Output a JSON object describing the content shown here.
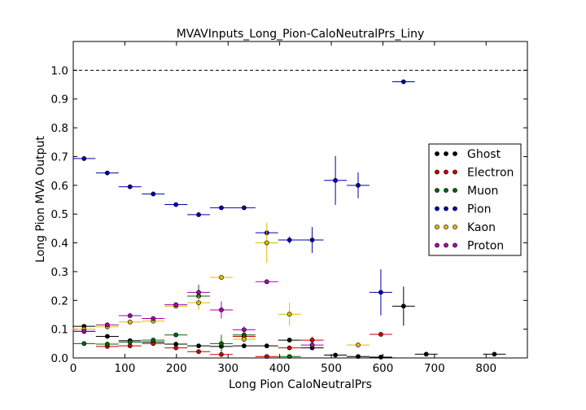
{
  "chart_data": {
    "type": "scatter",
    "title": "MVAVInputs_Long_Pion-CaloNeutralPrs_Liny",
    "xlabel": "Long Pion CaloNeutralPrs",
    "ylabel": "Long Pion MVA Output",
    "xlim": [
      0,
      880
    ],
    "ylim": [
      0,
      1.1
    ],
    "xticks": [
      0,
      100,
      200,
      300,
      400,
      500,
      600,
      700,
      800
    ],
    "yticks": [
      0.0,
      0.1,
      0.2,
      0.3,
      0.4,
      0.5,
      0.6,
      0.7,
      0.8,
      0.9,
      1.0
    ],
    "tick_labels_x": [
      "0",
      "100",
      "200",
      "300",
      "400",
      "500",
      "600",
      "700",
      "800"
    ],
    "tick_labels_y": [
      "0.0",
      "0.1",
      "0.2",
      "0.3",
      "0.4",
      "0.5",
      "0.6",
      "0.7",
      "0.8",
      "0.9",
      "1.0"
    ],
    "reference_line_y": 1.0,
    "legend_position": "right",
    "series": [
      {
        "name": "Ghost",
        "color": "#000000",
        "points": [
          {
            "x": 21,
            "y": 0.11,
            "xerr": 22,
            "yerr": 0.005
          },
          {
            "x": 66,
            "y": 0.075,
            "xerr": 22,
            "yerr": 0.005
          },
          {
            "x": 110,
            "y": 0.06,
            "xerr": 22,
            "yerr": 0.004
          },
          {
            "x": 155,
            "y": 0.055,
            "xerr": 22,
            "yerr": 0.004
          },
          {
            "x": 199,
            "y": 0.048,
            "xerr": 22,
            "yerr": 0.004
          },
          {
            "x": 243,
            "y": 0.042,
            "xerr": 22,
            "yerr": 0.004
          },
          {
            "x": 287,
            "y": 0.04,
            "xerr": 22,
            "yerr": 0.005
          },
          {
            "x": 331,
            "y": 0.042,
            "xerr": 22,
            "yerr": 0.005
          },
          {
            "x": 375,
            "y": 0.042,
            "xerr": 22,
            "yerr": 0.006
          },
          {
            "x": 419,
            "y": 0.062,
            "xerr": 22,
            "yerr": 0.008
          },
          {
            "x": 463,
            "y": 0.035,
            "xerr": 22,
            "yerr": 0.008
          },
          {
            "x": 508,
            "y": 0.01,
            "xerr": 22,
            "yerr": 0.005
          },
          {
            "x": 552,
            "y": 0.005,
            "xerr": 22,
            "yerr": 0.004
          },
          {
            "x": 596,
            "y": 0.003,
            "xerr": 22,
            "yerr": 0.003
          },
          {
            "x": 640,
            "y": 0.18,
            "xerr": 22,
            "yerr": 0.068
          },
          {
            "x": 684,
            "y": 0.013,
            "xerr": 22,
            "yerr": 0.006
          },
          {
            "x": 816,
            "y": 0.013,
            "xerr": 22,
            "yerr": 0.005
          }
        ]
      },
      {
        "name": "Electron",
        "color": "#cc0000",
        "points": [
          {
            "x": 21,
            "y": 0.092,
            "xerr": 22,
            "yerr": 0.006
          },
          {
            "x": 66,
            "y": 0.04,
            "xerr": 22,
            "yerr": 0.004
          },
          {
            "x": 110,
            "y": 0.042,
            "xerr": 22,
            "yerr": 0.004
          },
          {
            "x": 155,
            "y": 0.05,
            "xerr": 22,
            "yerr": 0.004
          },
          {
            "x": 199,
            "y": 0.035,
            "xerr": 22,
            "yerr": 0.004
          },
          {
            "x": 243,
            "y": 0.022,
            "xerr": 22,
            "yerr": 0.004
          },
          {
            "x": 287,
            "y": 0.012,
            "xerr": 22,
            "yerr": 0.005
          },
          {
            "x": 331,
            "y": 0.075,
            "xerr": 22,
            "yerr": 0.012
          },
          {
            "x": 375,
            "y": 0.005,
            "xerr": 22,
            "yerr": 0.004
          },
          {
            "x": 419,
            "y": 0.035,
            "xerr": 22,
            "yerr": 0.006
          },
          {
            "x": 463,
            "y": 0.062,
            "xerr": 22,
            "yerr": 0.012
          },
          {
            "x": 596,
            "y": 0.082,
            "xerr": 22,
            "yerr": 0.008
          }
        ]
      },
      {
        "name": "Muon",
        "color": "#006600",
        "points": [
          {
            "x": 21,
            "y": 0.05,
            "xerr": 22,
            "yerr": 0.004
          },
          {
            "x": 66,
            "y": 0.048,
            "xerr": 22,
            "yerr": 0.004
          },
          {
            "x": 110,
            "y": 0.055,
            "xerr": 22,
            "yerr": 0.004
          },
          {
            "x": 155,
            "y": 0.062,
            "xerr": 22,
            "yerr": 0.004
          },
          {
            "x": 199,
            "y": 0.08,
            "xerr": 22,
            "yerr": 0.006
          },
          {
            "x": 243,
            "y": 0.215,
            "xerr": 22,
            "yerr": 0.04
          },
          {
            "x": 287,
            "y": 0.05,
            "xerr": 22,
            "yerr": 0.03
          },
          {
            "x": 331,
            "y": 0.08,
            "xerr": 22,
            "yerr": 0.01
          },
          {
            "x": 419,
            "y": 0.005,
            "xerr": 22,
            "yerr": 0.004
          }
        ]
      },
      {
        "name": "Pion",
        "color": "#0000aa",
        "points": [
          {
            "x": 21,
            "y": 0.693,
            "xerr": 22,
            "yerr": 0.003
          },
          {
            "x": 66,
            "y": 0.643,
            "xerr": 22,
            "yerr": 0.003
          },
          {
            "x": 110,
            "y": 0.595,
            "xerr": 22,
            "yerr": 0.003
          },
          {
            "x": 155,
            "y": 0.57,
            "xerr": 22,
            "yerr": 0.003
          },
          {
            "x": 199,
            "y": 0.533,
            "xerr": 22,
            "yerr": 0.003
          },
          {
            "x": 243,
            "y": 0.498,
            "xerr": 22,
            "yerr": 0.004
          },
          {
            "x": 287,
            "y": 0.522,
            "xerr": 22,
            "yerr": 0.005
          },
          {
            "x": 331,
            "y": 0.522,
            "xerr": 22,
            "yerr": 0.007
          },
          {
            "x": 375,
            "y": 0.435,
            "xerr": 22,
            "yerr": 0.008
          },
          {
            "x": 419,
            "y": 0.41,
            "xerr": 22,
            "yerr": 0.012
          },
          {
            "x": 463,
            "y": 0.41,
            "xerr": 22,
            "yerr": 0.045
          },
          {
            "x": 508,
            "y": 0.617,
            "xerr": 22,
            "yerr": 0.085
          },
          {
            "x": 552,
            "y": 0.6,
            "xerr": 22,
            "yerr": 0.045
          },
          {
            "x": 596,
            "y": 0.228,
            "xerr": 22,
            "yerr": 0.08
          },
          {
            "x": 640,
            "y": 0.96,
            "xerr": 22,
            "yerr": 0.004
          }
        ]
      },
      {
        "name": "Kaon",
        "color": "#ddbb00",
        "points": [
          {
            "x": 21,
            "y": 0.1,
            "xerr": 22,
            "yerr": 0.005
          },
          {
            "x": 66,
            "y": 0.108,
            "xerr": 22,
            "yerr": 0.005
          },
          {
            "x": 110,
            "y": 0.125,
            "xerr": 22,
            "yerr": 0.005
          },
          {
            "x": 155,
            "y": 0.128,
            "xerr": 22,
            "yerr": 0.006
          },
          {
            "x": 199,
            "y": 0.18,
            "xerr": 22,
            "yerr": 0.008
          },
          {
            "x": 243,
            "y": 0.192,
            "xerr": 22,
            "yerr": 0.025
          },
          {
            "x": 287,
            "y": 0.28,
            "xerr": 22,
            "yerr": 0.01
          },
          {
            "x": 331,
            "y": 0.065,
            "xerr": 22,
            "yerr": 0.01
          },
          {
            "x": 375,
            "y": 0.4,
            "xerr": 22,
            "yerr": 0.07
          },
          {
            "x": 419,
            "y": 0.152,
            "xerr": 22,
            "yerr": 0.04
          },
          {
            "x": 552,
            "y": 0.045,
            "xerr": 22,
            "yerr": 0.008
          }
        ]
      },
      {
        "name": "Proton",
        "color": "#aa00aa",
        "points": [
          {
            "x": 21,
            "y": 0.093,
            "xerr": 22,
            "yerr": 0.005
          },
          {
            "x": 66,
            "y": 0.115,
            "xerr": 22,
            "yerr": 0.005
          },
          {
            "x": 110,
            "y": 0.147,
            "xerr": 22,
            "yerr": 0.006
          },
          {
            "x": 155,
            "y": 0.137,
            "xerr": 22,
            "yerr": 0.006
          },
          {
            "x": 199,
            "y": 0.185,
            "xerr": 22,
            "yerr": 0.008
          },
          {
            "x": 243,
            "y": 0.228,
            "xerr": 22,
            "yerr": 0.01
          },
          {
            "x": 287,
            "y": 0.167,
            "xerr": 22,
            "yerr": 0.03
          },
          {
            "x": 331,
            "y": 0.098,
            "xerr": 22,
            "yerr": 0.012
          },
          {
            "x": 375,
            "y": 0.265,
            "xerr": 22,
            "yerr": 0.005
          },
          {
            "x": 463,
            "y": 0.045,
            "xerr": 22,
            "yerr": 0.01
          }
        ]
      }
    ]
  }
}
